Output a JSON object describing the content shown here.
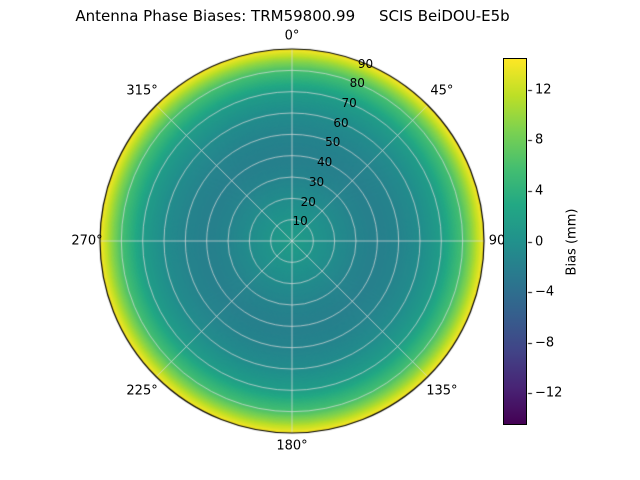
{
  "figure": {
    "background": "#ffffff"
  },
  "chart_data": {
    "type": "heatmap",
    "projection": "polar",
    "title": "Antenna Phase Biases: TRM59800.99     SCIS BeiDOU-E5b",
    "azimuth_ticks_deg": [
      0,
      45,
      90,
      135,
      180,
      225,
      270,
      315
    ],
    "azimuth_tick_labels": [
      "0°",
      "45°",
      "90",
      "135°",
      "180°",
      "225°",
      "270°",
      "315°"
    ],
    "zenith_ticks_deg": [
      10,
      20,
      30,
      40,
      50,
      60,
      70,
      80,
      90
    ],
    "zenith_tick_labels": [
      "10",
      "20",
      "30",
      "40",
      "50",
      "60",
      "70",
      "80",
      "90"
    ],
    "zenith_max_deg": 90,
    "azimuthally_symmetric": true,
    "radial_profile": {
      "zenith_deg": [
        0,
        10,
        20,
        30,
        40,
        50,
        60,
        70,
        80,
        85,
        90
      ],
      "bias_mm": [
        1.5,
        0.5,
        -0.5,
        -1.5,
        -2,
        -1.5,
        -0.5,
        1.5,
        6,
        10,
        14.5
      ]
    },
    "colormap": "viridis",
    "clim_mm": [
      -14.5,
      14.5
    ],
    "colormap_stops": [
      [
        0.0,
        68,
        1,
        84
      ],
      [
        0.1,
        72,
        36,
        117
      ],
      [
        0.2,
        65,
        68,
        135
      ],
      [
        0.3,
        53,
        95,
        141
      ],
      [
        0.4,
        42,
        120,
        142
      ],
      [
        0.5,
        33,
        145,
        140
      ],
      [
        0.6,
        34,
        168,
        132
      ],
      [
        0.7,
        68,
        190,
        112
      ],
      [
        0.8,
        122,
        209,
        81
      ],
      [
        0.9,
        189,
        223,
        38
      ],
      [
        1.0,
        253,
        231,
        37
      ]
    ],
    "colorbar": {
      "label": "Bias (mm)",
      "ticks_mm": [
        12,
        8,
        4,
        0,
        -4,
        -8,
        -12
      ],
      "tick_labels": [
        "12",
        "8",
        "4",
        "0",
        "−4",
        "−8",
        "−12"
      ]
    },
    "grid": true,
    "grid_color": "#dcdcdc",
    "outline_color": "#000000"
  }
}
